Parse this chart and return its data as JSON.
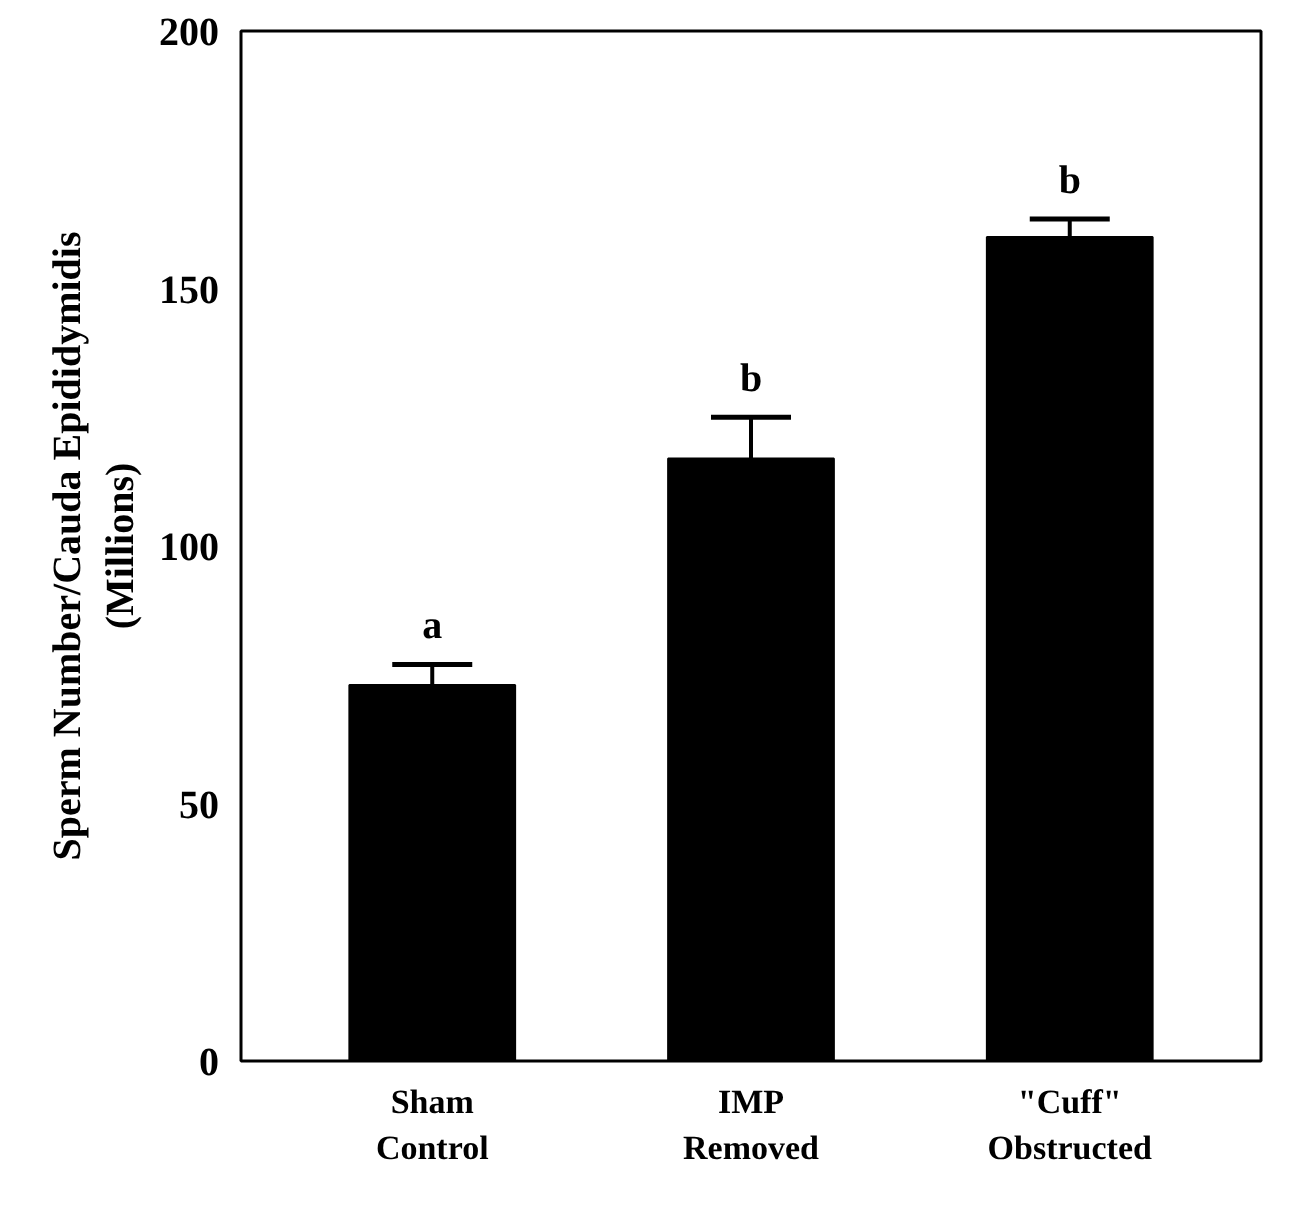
{
  "chart_data": {
    "type": "bar",
    "ylabel": "Sperm Number/Cauda Epididymidis\n(Millions)",
    "categories": [
      "Sham\nControl",
      "IMP\nRemoved",
      "\"Cuff\"\nObstructed"
    ],
    "values": [
      73,
      117,
      160
    ],
    "errors": [
      4,
      8,
      3.5
    ],
    "color": "#000000",
    "ylim": [
      0,
      200
    ],
    "yticks": [
      0,
      50,
      100,
      150,
      200
    ],
    "grid": false,
    "annotations": [
      {
        "text": "a",
        "x": "Sham\nControl",
        "y": 77
      },
      {
        "text": "b",
        "x": "IMP\nRemoved",
        "y": 125
      },
      {
        "text": "b",
        "x": "\"Cuff\"\nObstructed",
        "y": 163.5
      }
    ]
  }
}
